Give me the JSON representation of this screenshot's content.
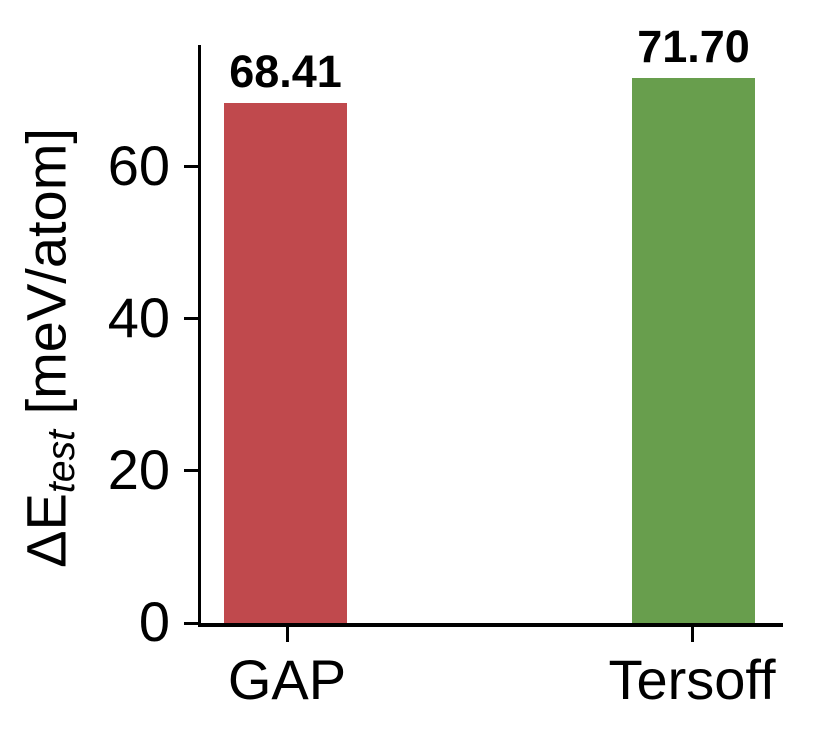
{
  "figure": {
    "background_color": "#ffffff",
    "axis_color": "#000000",
    "text_color": "#000000"
  },
  "chart_data": {
    "type": "bar",
    "title": "",
    "xlabel": "",
    "ylabel": "ΔE_test [meV/atom]",
    "ylabel_parts": {
      "prefix": "ΔE",
      "subscript": "test",
      "suffix": " [meV/atom]"
    },
    "categories": [
      "GAP",
      "Tersoff"
    ],
    "values": [
      68.41,
      71.7
    ],
    "value_labels": [
      "68.41",
      "71.70"
    ],
    "bar_colors": [
      "#c0494d",
      "#689e4d"
    ],
    "ylim": [
      0,
      76
    ],
    "ytick_values": [
      0,
      20,
      40,
      60
    ],
    "ytick_labels": [
      "0",
      "20",
      "40",
      "60"
    ],
    "grid": false,
    "legend_position": "none"
  }
}
